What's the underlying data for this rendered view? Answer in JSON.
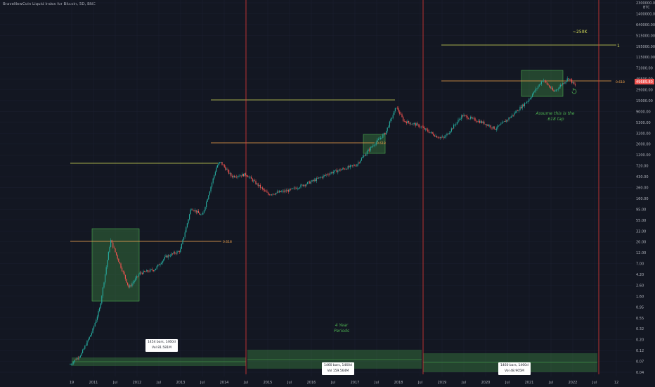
{
  "title": "BraveNewCoin Liquid Index for Bitcoin, 5D, BNC",
  "colors": {
    "background": "#131722",
    "candle_up": "#26a69a",
    "candle_down": "#ef5350",
    "fib_line": "#f7a54b",
    "top_line": "#d8e05a",
    "period_line": "#e53935",
    "green_box": "#4caf50",
    "current_price_bg": "#ef5350"
  },
  "y_axis": {
    "currency": "BTC",
    "ticks": [
      "2300000.00",
      "1400000.00",
      "640000.00",
      "515000.00",
      "195000.00",
      "115000.00",
      "71000.00",
      "49500.00",
      "29000.00",
      "15000.00",
      "9000.00",
      "5300.00",
      "3200.00",
      "2000.00",
      "1200.00",
      "720.00",
      "430.00",
      "260.00",
      "160.00",
      "95.00",
      "55.00",
      "33.00",
      "20.00",
      "12.00",
      "7.00",
      "4.20",
      "2.60",
      "1.60",
      "0.95",
      "0.55",
      "0.32",
      "0.20",
      "0.12",
      "0.07",
      "0.04"
    ],
    "current_price": "49689.80"
  },
  "x_axis": {
    "ticks": [
      "19",
      "2011",
      "Jul",
      "2012",
      "Jul",
      "2013",
      "Jul",
      "2014",
      "Jul",
      "2015",
      "Jul",
      "2016",
      "Jul",
      "2017",
      "Jul",
      "2018",
      "Jul",
      "2019",
      "Jul",
      "2020",
      "Jul",
      "2021",
      "Jul",
      "2022",
      "Jul",
      "12"
    ]
  },
  "annotations": {
    "target": "~250K",
    "top_fib_level": "1",
    "fib_level": "0.618",
    "assume_line1": "Assume this is the",
    "assume_line2": ".618 tap",
    "four_year_line1": "4 Year",
    "four_year_line2": "Periods"
  },
  "range_labels": [
    {
      "bars": "1454 bars, 1460d",
      "vol": "Vol 81.581M"
    },
    {
      "bars": "1460 bars, 1460d",
      "vol": "Vol 159.564M"
    },
    {
      "bars": "1460 bars, 1460d",
      "vol": "Vol 48.905M"
    }
  ],
  "chart_data": {
    "type": "line",
    "title": "BraveNewCoin Liquid Index for Bitcoin, 5D, BNC",
    "y_scale": "log",
    "ylim": [
      0.04,
      2300000
    ],
    "xlim": [
      "2010-07",
      "2023-01"
    ],
    "series": [
      {
        "x": [
          "2010-07",
          "2010-10",
          "2011-01",
          "2011-03",
          "2011-06",
          "2011-08",
          "2011-11",
          "2012-02",
          "2012-06",
          "2012-09",
          "2013-01",
          "2013-04",
          "2013-07",
          "2013-11",
          "2013-12",
          "2014-03",
          "2014-07",
          "2015-01",
          "2015-07",
          "2016-01",
          "2016-06",
          "2017-01",
          "2017-05",
          "2017-09",
          "2017-12",
          "2018-02",
          "2018-06",
          "2018-11",
          "2019-01",
          "2019-06",
          "2019-12",
          "2020-03",
          "2020-07",
          "2020-12",
          "2021-04",
          "2021-07",
          "2021-11",
          "2022-01"
        ],
        "values": [
          0.06,
          0.1,
          0.3,
          0.9,
          25,
          10,
          2.5,
          5,
          6,
          11,
          15,
          120,
          80,
          900,
          1100,
          550,
          600,
          230,
          280,
          430,
          650,
          950,
          2200,
          4500,
          16000,
          8000,
          6500,
          3800,
          3500,
          10500,
          7200,
          5500,
          9500,
          22000,
          60000,
          33000,
          65000,
          42000
        ]
      }
    ],
    "fib_0618_levels": [
      26,
      2300,
      49500
    ],
    "cycle_tops": [
      1100,
      19000,
      250000
    ],
    "period_boundaries": [
      "2014-07",
      "2018-07",
      "2022-07"
    ],
    "xlabel": "",
    "ylabel": ""
  }
}
